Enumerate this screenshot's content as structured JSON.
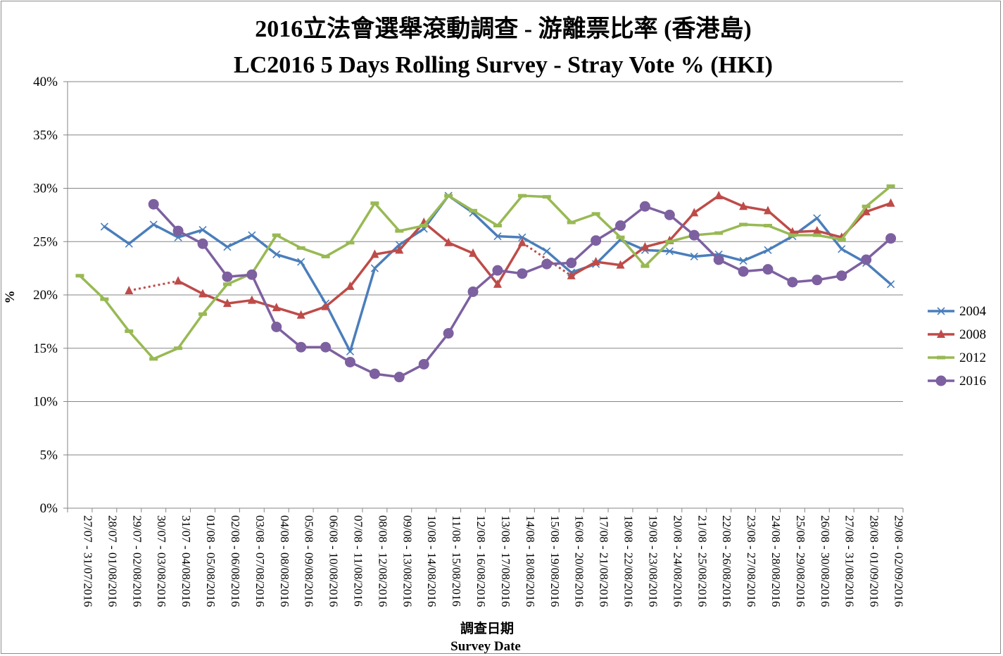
{
  "chart_data": {
    "type": "line",
    "title": "2016立法會選舉滾動調查 - 游離票比率 (香港島)",
    "subtitle": "LC2016 5 Days Rolling Survey - Stray Vote % (HKI)",
    "xlabel_zh": "調查日期",
    "xlabel": "Survey Date",
    "ylabel": "%",
    "ylim": [
      0,
      40
    ],
    "yticks": [
      "0%",
      "5%",
      "10%",
      "15%",
      "20%",
      "25%",
      "30%",
      "35%",
      "40%"
    ],
    "grid": true,
    "legend_position": "right",
    "categories": [
      "27/07 - 31/07/2016",
      "28/07 - 01/08/2016",
      "29/07 - 02/08/2016",
      "30/07 - 03/08/2016",
      "31/07 - 04/08/2016",
      "01/08 - 05/08/2016",
      "02/08 - 06/08/2016",
      "03/08 - 07/08/2016",
      "04/08 - 08/08/2016",
      "05/08 - 09/08/2016",
      "06/08 - 10/08/2016",
      "07/08 - 11/08/2016",
      "08/08 - 12/08/2016",
      "09/08 - 13/08/2016",
      "10/08 - 14/08/2016",
      "11/08 - 15/08/2016",
      "12/08 - 16/08/2016",
      "13/08 - 17/08/2016",
      "14/08 - 18/08/2016",
      "15/08 - 19/08/2016",
      "16/08 - 20/08/2016",
      "17/08 - 21/08/2016",
      "18/08 - 22/08/2016",
      "19/08 - 23/08/2016",
      "20/08 - 24/08/2016",
      "21/08 - 25/08/2016",
      "22/08 - 26/08/2016",
      "23/08 - 27/08/2016",
      "24/08 - 28/08/2016",
      "25/08 - 29/08/2016",
      "26/08 - 30/08/2016",
      "27/08 - 31/08/2016",
      "28/08 - 01/09/2016",
      "29/08 - 02/09/2016"
    ],
    "series": [
      {
        "name": "2004",
        "color": "#4a7ebb",
        "marker": "x",
        "values": [
          null,
          26.4,
          24.8,
          26.6,
          25.4,
          26.1,
          24.5,
          25.6,
          23.8,
          23.1,
          19.2,
          14.7,
          22.5,
          24.7,
          26.2,
          29.3,
          27.7,
          25.5,
          25.4,
          24.1,
          22.1,
          22.9,
          25.2,
          24.2,
          24.1,
          23.6,
          23.8,
          23.2,
          24.2,
          25.5,
          27.2,
          24.3,
          23.0,
          21.0
        ]
      },
      {
        "name": "2008",
        "color": "#be4b48",
        "marker": "triangle",
        "values": [
          null,
          null,
          20.4,
          null,
          21.3,
          20.1,
          19.2,
          19.5,
          18.8,
          18.1,
          18.9,
          20.8,
          23.8,
          24.2,
          26.8,
          24.9,
          23.9,
          21.0,
          24.9,
          null,
          21.8,
          23.1,
          22.8,
          24.5,
          25.1,
          27.7,
          29.3,
          28.3,
          27.9,
          25.9,
          26.0,
          25.4,
          27.8,
          28.6
        ]
      },
      {
        "name": "2012",
        "color": "#98b954",
        "marker": "dash",
        "values": [
          21.8,
          19.6,
          16.6,
          14.0,
          15.0,
          18.2,
          21.0,
          22.0,
          25.6,
          24.4,
          23.6,
          24.9,
          28.6,
          26.0,
          26.5,
          29.3,
          27.9,
          26.5,
          29.3,
          29.2,
          26.8,
          27.6,
          25.4,
          22.7,
          25.0,
          25.6,
          25.8,
          26.6,
          26.5,
          25.6,
          25.6,
          25.2,
          28.3,
          30.2
        ]
      },
      {
        "name": "2016",
        "color": "#7d60a0",
        "marker": "circle",
        "values": [
          null,
          null,
          null,
          28.5,
          26.0,
          24.8,
          21.7,
          21.9,
          17.0,
          15.1,
          15.1,
          13.7,
          12.6,
          12.3,
          13.5,
          16.4,
          20.3,
          22.3,
          22.0,
          22.9,
          23.0,
          25.1,
          26.5,
          28.3,
          27.5,
          25.6,
          23.3,
          22.2,
          22.4,
          21.2,
          21.4,
          21.8,
          23.3,
          25.3
        ]
      }
    ]
  }
}
